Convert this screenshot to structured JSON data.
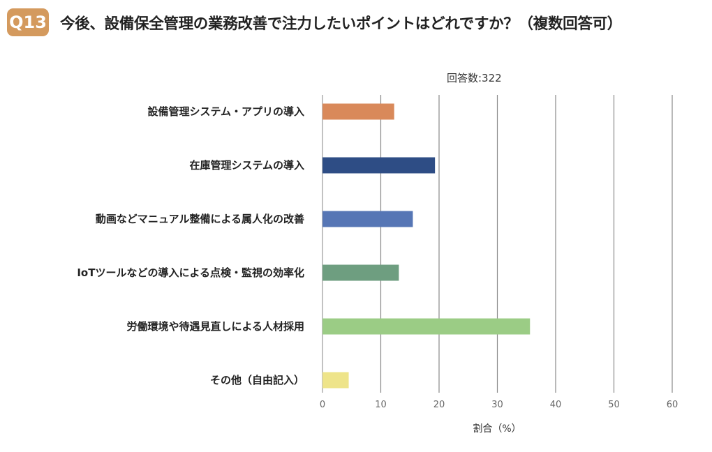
{
  "header": {
    "badge": "Q13",
    "title": "今後、設備保全管理の業務改善で注力したいポイントはどれですか？（複数回答可）"
  },
  "chart_data": {
    "type": "bar",
    "orientation": "horizontal",
    "subtitle": "回答数:322",
    "xlabel": "割合（%）",
    "xlim": [
      0,
      60
    ],
    "xticks": [
      0,
      10,
      20,
      30,
      40,
      50,
      60
    ],
    "grid": true,
    "categories": [
      "設備管理システム・アプリの導入",
      "在庫管理システムの導入",
      "動画などマニュアル整備による属人化の改善",
      "IoTツールなどの導入による点検・監視の効率化",
      "労働環境や待遇見直しによる人材採用",
      "その他（自由記入）"
    ],
    "values": [
      12.3,
      19.3,
      15.5,
      13.1,
      35.6,
      4.5
    ],
    "colors": [
      "#d9895a",
      "#2e4d85",
      "#5676b5",
      "#6e9e80",
      "#9bcc85",
      "#eee48a"
    ]
  }
}
